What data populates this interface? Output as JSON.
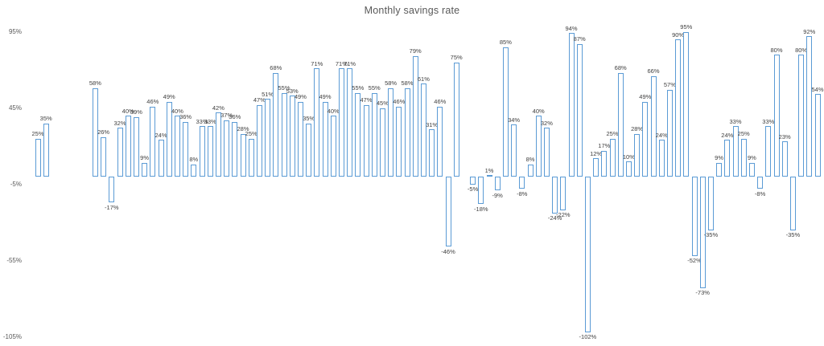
{
  "colors": {
    "bar_border": "#5b9bd5",
    "bar_fill": "#ffffff",
    "data_label_text": "#404040",
    "axis_label_text": "#595959",
    "title_text": "#595959",
    "background": "#ffffff"
  },
  "chart_data": {
    "type": "bar",
    "title": "Monthly savings rate",
    "xlabel": "",
    "ylabel": "",
    "unit": "%",
    "grid": false,
    "legend": false,
    "data_labels_shown": true,
    "y_axis": {
      "min": -105,
      "max": 95,
      "tick_step": 50,
      "ticks": [
        95,
        45,
        -5,
        -55,
        -105
      ],
      "tick_labels": [
        "95%",
        "45%",
        "-5%",
        "-55%",
        "-105%"
      ]
    },
    "note": "null entries are empty slots (gaps) in the monthly sequence",
    "values": [
      25,
      35,
      null,
      null,
      null,
      null,
      null,
      58,
      26,
      -17,
      32,
      40,
      39,
      9,
      46,
      24,
      49,
      40,
      36,
      8,
      33,
      33,
      42,
      37,
      36,
      28,
      25,
      47,
      51,
      68,
      55,
      53,
      49,
      35,
      71,
      49,
      40,
      71,
      71,
      55,
      47,
      55,
      45,
      58,
      46,
      58,
      79,
      61,
      31,
      46,
      -46,
      75,
      null,
      -5,
      -18,
      1,
      -9,
      85,
      34,
      -8,
      8,
      40,
      32,
      -24,
      -22,
      94,
      87,
      -102,
      12,
      17,
      25,
      68,
      10,
      28,
      49,
      66,
      24,
      57,
      90,
      95,
      -52,
      -73,
      -35,
      9,
      24,
      33,
      25,
      9,
      -8,
      33,
      80,
      23,
      -35,
      80,
      92,
      54
    ],
    "labels": [
      "25%",
      "35%",
      null,
      null,
      null,
      null,
      null,
      "58%",
      "26%",
      "-17%",
      "32%",
      "40%",
      "39%",
      "9%",
      "46%",
      "24%",
      "49%",
      "40%",
      "36%",
      "8%",
      "33%",
      "33%",
      "42%",
      "37%",
      "36%",
      "28%",
      "25%",
      "47%",
      "51%",
      "68%",
      "55%",
      "53%",
      "49%",
      "35%",
      "71%",
      "49%",
      "40%",
      "71%",
      "71%",
      "55%",
      "47%",
      "55%",
      "45%",
      "58%",
      "46%",
      "58%",
      "79%",
      "61%",
      "31%",
      "46%",
      "-46%",
      "75%",
      null,
      "-5%",
      "-18%",
      "1%",
      "-9%",
      "85%",
      "34%",
      "-8%",
      "8%",
      "40%",
      "32%",
      "-24%",
      "-22%",
      "94%",
      "87%",
      "-102%",
      "12%",
      "17%",
      "25%",
      "68%",
      "10%",
      "28%",
      "49%",
      "66%",
      "24%",
      "57%",
      "90%",
      "95%",
      "-52%",
      "-73%",
      "-35%",
      "9%",
      "24%",
      "33%",
      "25%",
      "9%",
      "-8%",
      "33%",
      "80%",
      "23%",
      "-35%",
      "80%",
      "92%",
      "54%"
    ]
  }
}
